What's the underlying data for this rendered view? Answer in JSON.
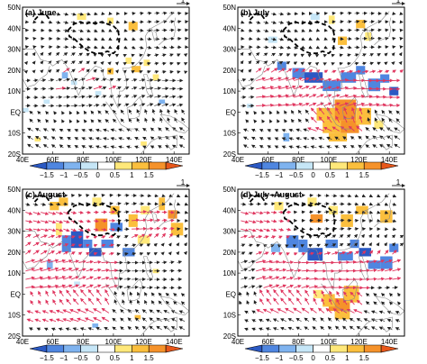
{
  "panels": [
    {
      "id": "a",
      "title": "(a)  June"
    },
    {
      "id": "b",
      "title": "(b)  July"
    },
    {
      "id": "c",
      "title": "(c)  August"
    },
    {
      "id": "d",
      "title": "(d)  July–August"
    }
  ],
  "lon_ticks": [
    "40E",
    "60E",
    "80E",
    "100E",
    "120E",
    "140E"
  ],
  "lat_ticks": [
    "50N",
    "40N",
    "30N",
    "20N",
    "10N",
    "EQ",
    "10S",
    "20S"
  ],
  "colorbar": {
    "labels": [
      "−1.5",
      "−1",
      "−0.5",
      "0",
      "0.5",
      "1",
      "1.5"
    ],
    "colors": [
      "#2b59c3",
      "#4f86e0",
      "#7fb3ef",
      "#c6e6f7",
      "#ffffff",
      "#ffe87a",
      "#fbbf3d",
      "#f5922a",
      "#e8571a"
    ]
  },
  "reference_vector_label": "1",
  "colors": {
    "wind_significant": "#e0365f",
    "wind_other": "#222222",
    "contour": "#000000",
    "coast": "#8a8a8a"
  }
}
